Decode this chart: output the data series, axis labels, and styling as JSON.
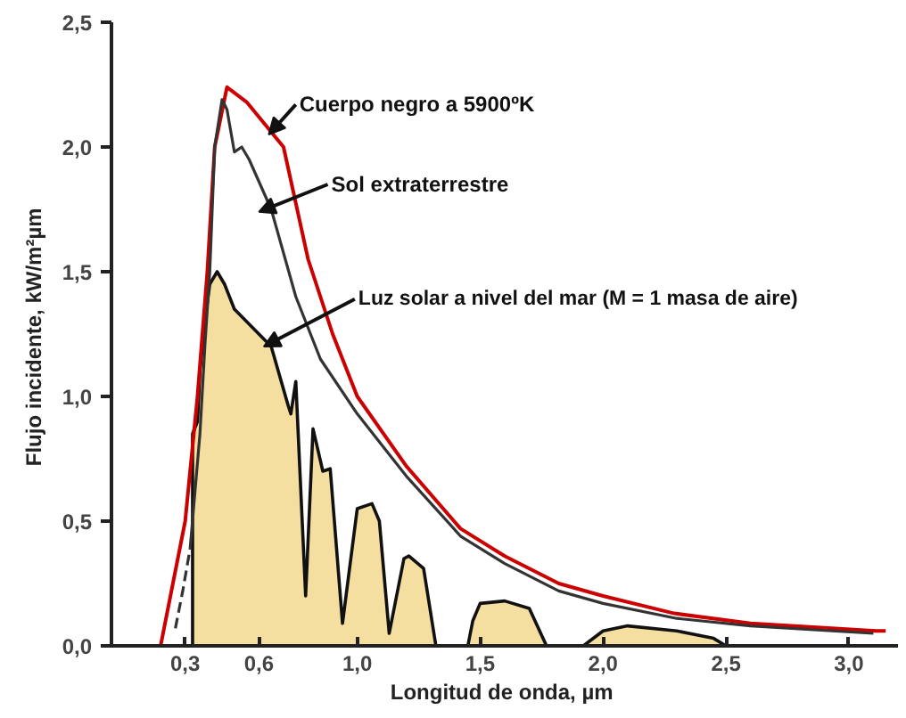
{
  "chart_data": {
    "type": "line",
    "xlabel": "Longitud de onda,  µm",
    "ylabel": "Flujo incidente,  kW/m²µm",
    "xlim": [
      0.0,
      3.2
    ],
    "ylim": [
      0.0,
      2.5
    ],
    "xticks": [
      {
        "value": 0.3,
        "label": "0,3"
      },
      {
        "value": 0.6,
        "label": "0,6"
      },
      {
        "value": 1.0,
        "label": "1,0"
      },
      {
        "value": 1.5,
        "label": "1,5"
      },
      {
        "value": 2.0,
        "label": "2,0"
      },
      {
        "value": 2.5,
        "label": "2,5"
      },
      {
        "value": 3.0,
        "label": "3,0"
      }
    ],
    "yticks": [
      {
        "value": 0.0,
        "label": "0,0"
      },
      {
        "value": 0.5,
        "label": "0,5"
      },
      {
        "value": 1.0,
        "label": "1,0"
      },
      {
        "value": 1.5,
        "label": "1,5"
      },
      {
        "value": 2.0,
        "label": "2,0"
      },
      {
        "value": 2.5,
        "label": "2,5"
      }
    ],
    "grid": false,
    "annotations": [
      {
        "text": "Cuerpo negro a 5900ºK",
        "x": 0.64,
        "y": 2.05
      },
      {
        "text": "Sol extraterrestre",
        "x": 0.6,
        "y": 1.74
      },
      {
        "text": "Luz solar a nivel del mar   (M = 1 masa de aire)",
        "x": 0.62,
        "y": 1.2
      }
    ],
    "series": [
      {
        "color": "#cc0000",
        "x": [
          0.2,
          0.3,
          0.35,
          0.39,
          0.42,
          0.47,
          0.55,
          0.7,
          0.8,
          0.9,
          1.0,
          1.2,
          1.42,
          1.6,
          1.82,
          2.0,
          2.29,
          2.6,
          3.11,
          3.15
        ],
        "values": [
          0,
          0.5,
          1.0,
          1.5,
          2.0,
          2.24,
          2.18,
          2.0,
          1.55,
          1.25,
          1.0,
          0.72,
          0.47,
          0.36,
          0.25,
          0.2,
          0.13,
          0.09,
          0.06,
          0.06
        ]
      },
      {
        "color": "#333333",
        "x": [
          0.32,
          0.36,
          0.38,
          0.4,
          0.42,
          0.45,
          0.47,
          0.5,
          0.53,
          0.56,
          0.65,
          0.75,
          0.85,
          1.0,
          1.2,
          1.42,
          1.6,
          1.82,
          2.0,
          2.3,
          2.6,
          3.1
        ],
        "values": [
          0.39,
          0.85,
          1.2,
          1.5,
          2.0,
          2.19,
          2.15,
          1.98,
          2.0,
          1.95,
          1.75,
          1.4,
          1.15,
          0.93,
          0.68,
          0.44,
          0.33,
          0.22,
          0.17,
          0.11,
          0.08,
          0.05
        ]
      },
      {
        "line_style": "dashed",
        "color": "#333333",
        "x": [
          0.26,
          0.29,
          0.32
        ],
        "values": [
          0.07,
          0.22,
          0.39
        ]
      },
      {
        "type": "area",
        "color": "#f5dfa0",
        "x": [
          0.33,
          0.33,
          0.35,
          0.36,
          0.38,
          0.4,
          0.43,
          0.46,
          0.5,
          0.55,
          0.6,
          0.65,
          0.72,
          0.73,
          0.75,
          0.79,
          0.82,
          0.86,
          0.89,
          0.94,
          1.0,
          1.06,
          1.09,
          1.13,
          1.19,
          1.21,
          1.27,
          1.32,
          1.45,
          1.47,
          1.5,
          1.6,
          1.7,
          1.77,
          1.92,
          2.0,
          2.1,
          2.3,
          2.45,
          2.5
        ],
        "values": [
          0,
          0.85,
          0.9,
          1.1,
          1.3,
          1.45,
          1.5,
          1.45,
          1.35,
          1.3,
          1.25,
          1.2,
          0.96,
          0.93,
          1.06,
          0.2,
          0.87,
          0.7,
          0.71,
          0.09,
          0.55,
          0.57,
          0.5,
          0.05,
          0.35,
          0.36,
          0.31,
          0,
          0,
          0.1,
          0.17,
          0.18,
          0.15,
          0,
          0,
          0.06,
          0.08,
          0.06,
          0.03,
          0
        ]
      }
    ]
  }
}
